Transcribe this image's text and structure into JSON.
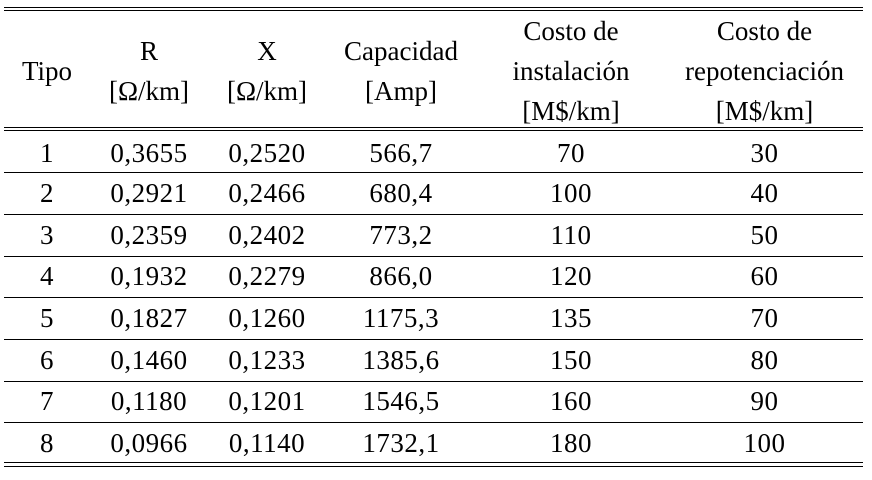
{
  "table": {
    "headers": [
      {
        "lines": [
          "Tipo"
        ]
      },
      {
        "lines": [
          "R",
          "[Ω/km]"
        ]
      },
      {
        "lines": [
          "X",
          "[Ω/km]"
        ]
      },
      {
        "lines": [
          "Capacidad",
          "[Amp]"
        ]
      },
      {
        "lines": [
          "Costo de",
          "instalación",
          "[M$/km]"
        ]
      },
      {
        "lines": [
          "Costo de",
          "repotenciación",
          "[M$/km]"
        ]
      }
    ],
    "rows": [
      [
        "1",
        "0,3655",
        "0,2520",
        "566,7",
        "70",
        "30"
      ],
      [
        "2",
        "0,2921",
        "0,2466",
        "680,4",
        "100",
        "40"
      ],
      [
        "3",
        "0,2359",
        "0,2402",
        "773,2",
        "110",
        "50"
      ],
      [
        "4",
        "0,1932",
        "0,2279",
        "866,0",
        "120",
        "60"
      ],
      [
        "5",
        "0,1827",
        "0,1260",
        "1175,3",
        "135",
        "70"
      ],
      [
        "6",
        "0,1460",
        "0,1233",
        "1385,6",
        "150",
        "80"
      ],
      [
        "7",
        "0,1180",
        "0,1201",
        "1546,5",
        "160",
        "90"
      ],
      [
        "8",
        "0,0966",
        "0,1140",
        "1732,1",
        "180",
        "100"
      ]
    ]
  }
}
